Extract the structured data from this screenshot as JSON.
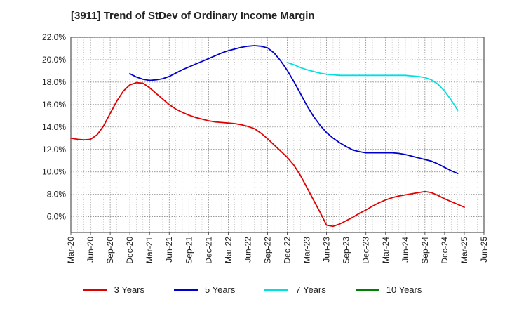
{
  "chart_data": {
    "type": "line",
    "title": "[3911]  Trend of StDev of Ordinary Income Margin",
    "xlabel": "",
    "ylabel": "",
    "ylim": [
      4.6,
      22.0
    ],
    "yticks": [
      "6.0%",
      "8.0%",
      "10.0%",
      "12.0%",
      "14.0%",
      "16.0%",
      "18.0%",
      "20.0%",
      "22.0%"
    ],
    "ytick_values": [
      6,
      8,
      10,
      12,
      14,
      16,
      18,
      20,
      22
    ],
    "categories": [
      "Mar-20",
      "Jun-20",
      "Sep-20",
      "Dec-20",
      "Mar-21",
      "Jun-21",
      "Sep-21",
      "Dec-21",
      "Mar-22",
      "Jun-22",
      "Sep-22",
      "Dec-22",
      "Mar-23",
      "Jun-23",
      "Sep-23",
      "Dec-23",
      "Mar-24",
      "Jun-24",
      "Sep-24",
      "Dec-24",
      "Mar-25",
      "Jun-25"
    ],
    "grid": true,
    "legend_position": "bottom",
    "series": [
      {
        "name": "3 Years",
        "color": "#e00000",
        "points": [
          [
            "Mar-20",
            13.0
          ],
          [
            "Apr-20",
            12.9
          ],
          [
            "May-20",
            12.85
          ],
          [
            "Jun-20",
            12.9
          ],
          [
            "Jul-20",
            13.3
          ],
          [
            "Aug-20",
            14.1
          ],
          [
            "Sep-20",
            15.2
          ],
          [
            "Oct-20",
            16.3
          ],
          [
            "Nov-20",
            17.2
          ],
          [
            "Dec-20",
            17.75
          ],
          [
            "Jan-21",
            17.95
          ],
          [
            "Feb-21",
            17.9
          ],
          [
            "Mar-21",
            17.5
          ],
          [
            "Apr-21",
            17.0
          ],
          [
            "May-21",
            16.5
          ],
          [
            "Jun-21",
            16.0
          ],
          [
            "Jul-21",
            15.6
          ],
          [
            "Aug-21",
            15.3
          ],
          [
            "Sep-21",
            15.05
          ],
          [
            "Oct-21",
            14.85
          ],
          [
            "Nov-21",
            14.7
          ],
          [
            "Dec-21",
            14.55
          ],
          [
            "Jan-22",
            14.45
          ],
          [
            "Feb-22",
            14.4
          ],
          [
            "Mar-22",
            14.35
          ],
          [
            "Apr-22",
            14.3
          ],
          [
            "May-22",
            14.2
          ],
          [
            "Jun-22",
            14.05
          ],
          [
            "Jul-22",
            13.85
          ],
          [
            "Aug-22",
            13.45
          ],
          [
            "Sep-22",
            12.95
          ],
          [
            "Oct-22",
            12.4
          ],
          [
            "Nov-22",
            11.85
          ],
          [
            "Dec-22",
            11.3
          ],
          [
            "Jan-23",
            10.6
          ],
          [
            "Feb-23",
            9.7
          ],
          [
            "Mar-23",
            8.6
          ],
          [
            "Apr-23",
            7.5
          ],
          [
            "May-23",
            6.4
          ],
          [
            "Jun-23",
            5.25
          ],
          [
            "Jul-23",
            5.15
          ],
          [
            "Aug-23",
            5.35
          ],
          [
            "Sep-23",
            5.65
          ],
          [
            "Oct-23",
            5.95
          ],
          [
            "Nov-23",
            6.3
          ],
          [
            "Dec-23",
            6.6
          ],
          [
            "Jan-24",
            6.95
          ],
          [
            "Feb-24",
            7.25
          ],
          [
            "Mar-24",
            7.5
          ],
          [
            "Apr-24",
            7.7
          ],
          [
            "May-24",
            7.85
          ],
          [
            "Jun-24",
            7.95
          ],
          [
            "Jul-24",
            8.05
          ],
          [
            "Aug-24",
            8.15
          ],
          [
            "Sep-24",
            8.25
          ],
          [
            "Oct-24",
            8.15
          ],
          [
            "Nov-24",
            7.9
          ],
          [
            "Dec-24",
            7.6
          ],
          [
            "Jan-25",
            7.35
          ],
          [
            "Feb-25",
            7.1
          ],
          [
            "Mar-25",
            6.85
          ]
        ]
      },
      {
        "name": "5 Years",
        "color": "#0000cc",
        "points": [
          [
            "Dec-20",
            18.75
          ],
          [
            "Jan-21",
            18.45
          ],
          [
            "Feb-21",
            18.25
          ],
          [
            "Mar-21",
            18.15
          ],
          [
            "Apr-21",
            18.2
          ],
          [
            "May-21",
            18.3
          ],
          [
            "Jun-21",
            18.5
          ],
          [
            "Jul-21",
            18.8
          ],
          [
            "Aug-21",
            19.1
          ],
          [
            "Sep-21",
            19.35
          ],
          [
            "Oct-21",
            19.6
          ],
          [
            "Nov-21",
            19.85
          ],
          [
            "Dec-21",
            20.1
          ],
          [
            "Jan-22",
            20.35
          ],
          [
            "Feb-22",
            20.6
          ],
          [
            "Mar-22",
            20.8
          ],
          [
            "Apr-22",
            20.95
          ],
          [
            "May-22",
            21.1
          ],
          [
            "Jun-22",
            21.2
          ],
          [
            "Jul-22",
            21.25
          ],
          [
            "Aug-22",
            21.2
          ],
          [
            "Sep-22",
            21.05
          ],
          [
            "Oct-22",
            20.6
          ],
          [
            "Nov-22",
            19.9
          ],
          [
            "Dec-22",
            19.05
          ],
          [
            "Jan-23",
            18.05
          ],
          [
            "Feb-23",
            17.0
          ],
          [
            "Mar-23",
            15.9
          ],
          [
            "Apr-23",
            14.95
          ],
          [
            "May-23",
            14.15
          ],
          [
            "Jun-23",
            13.5
          ],
          [
            "Jul-23",
            13.0
          ],
          [
            "Aug-23",
            12.6
          ],
          [
            "Sep-23",
            12.25
          ],
          [
            "Oct-23",
            11.95
          ],
          [
            "Nov-23",
            11.8
          ],
          [
            "Dec-23",
            11.7
          ],
          [
            "Jan-24",
            11.7
          ],
          [
            "Feb-24",
            11.7
          ],
          [
            "Mar-24",
            11.7
          ],
          [
            "Apr-24",
            11.7
          ],
          [
            "May-24",
            11.65
          ],
          [
            "Jun-24",
            11.55
          ],
          [
            "Jul-24",
            11.4
          ],
          [
            "Aug-24",
            11.25
          ],
          [
            "Sep-24",
            11.1
          ],
          [
            "Oct-24",
            10.95
          ],
          [
            "Nov-24",
            10.7
          ],
          [
            "Dec-24",
            10.4
          ],
          [
            "Jan-25",
            10.1
          ],
          [
            "Feb-25",
            9.85
          ]
        ]
      },
      {
        "name": "7 Years",
        "color": "#00e0e0",
        "points": [
          [
            "Dec-22",
            19.75
          ],
          [
            "Jan-23",
            19.55
          ],
          [
            "Feb-23",
            19.3
          ],
          [
            "Mar-23",
            19.1
          ],
          [
            "Apr-23",
            18.95
          ],
          [
            "May-23",
            18.8
          ],
          [
            "Jun-23",
            18.7
          ],
          [
            "Jul-23",
            18.65
          ],
          [
            "Aug-23",
            18.6
          ],
          [
            "Sep-23",
            18.6
          ],
          [
            "Oct-23",
            18.6
          ],
          [
            "Nov-23",
            18.6
          ],
          [
            "Dec-23",
            18.6
          ],
          [
            "Jan-24",
            18.6
          ],
          [
            "Feb-24",
            18.6
          ],
          [
            "Mar-24",
            18.6
          ],
          [
            "Apr-24",
            18.6
          ],
          [
            "May-24",
            18.6
          ],
          [
            "Jun-24",
            18.6
          ],
          [
            "Jul-24",
            18.55
          ],
          [
            "Aug-24",
            18.5
          ],
          [
            "Sep-24",
            18.4
          ],
          [
            "Oct-24",
            18.2
          ],
          [
            "Nov-24",
            17.8
          ],
          [
            "Dec-24",
            17.2
          ],
          [
            "Jan-25",
            16.4
          ],
          [
            "Feb-25",
            15.5
          ]
        ]
      },
      {
        "name": "10 Years",
        "color": "#008000",
        "points": []
      }
    ]
  }
}
